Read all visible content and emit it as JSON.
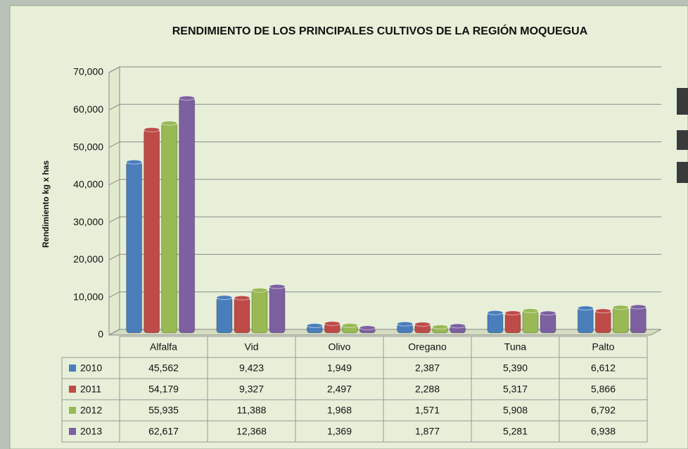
{
  "chart_data": {
    "type": "bar",
    "title": "RENDIMIENTO DE LOS PRINCIPALES CULTIVOS DE LA REGIÓN MOQUEGUA",
    "y_label": "Rendimiento kg x has",
    "categories": [
      "Alfalfa",
      "Vid",
      "Olivo",
      "Oregano",
      "Tuna",
      "Palto"
    ],
    "series": [
      {
        "name": "2010",
        "color": "#4a7ebb",
        "values": [
          45562,
          9423,
          1949,
          2387,
          5390,
          6612
        ],
        "value_labels": [
          "45,562",
          "9,423",
          "1,949",
          "2,387",
          "5,390",
          "6,612"
        ]
      },
      {
        "name": "2011",
        "color": "#be4b48",
        "values": [
          54179,
          9327,
          2497,
          2288,
          5317,
          5866
        ],
        "value_labels": [
          "54,179",
          "9,327",
          "2,497",
          "2,288",
          "5,317",
          "5,866"
        ]
      },
      {
        "name": "2012",
        "color": "#98b954",
        "values": [
          55935,
          11388,
          1968,
          1571,
          5908,
          6792
        ],
        "value_labels": [
          "55,935",
          "11,388",
          "1,968",
          "1,571",
          "5,908",
          "6,792"
        ]
      },
      {
        "name": "2013",
        "color": "#7d60a0",
        "values": [
          62617,
          12368,
          1369,
          1877,
          5281,
          6938
        ],
        "value_labels": [
          "62,617",
          "12,368",
          "1,369",
          "1,877",
          "5,281",
          "6,938"
        ]
      }
    ],
    "ylim": [
      0,
      70000
    ],
    "yticks": [
      0,
      {
        "value": 10000,
        "label": "10,000"
      },
      {
        "value": 20000,
        "label": "20,000"
      },
      {
        "value": 30000,
        "label": "30,000"
      },
      {
        "value": 40000,
        "label": "40,000"
      },
      {
        "value": 50000,
        "label": "50,000"
      },
      {
        "value": 60000,
        "label": "60,000"
      },
      {
        "value": 70000,
        "label": "70,000"
      }
    ],
    "grid": true
  }
}
